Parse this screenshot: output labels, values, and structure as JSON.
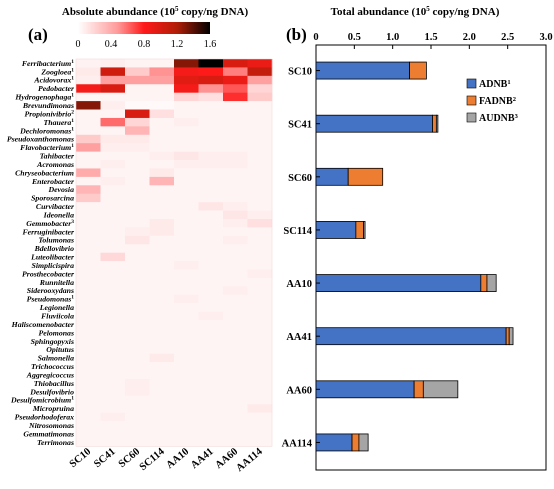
{
  "panel_a": {
    "label": "(a)",
    "colorbar_title": "Absolute abundance (10",
    "colorbar_title_sup": "5",
    "colorbar_title_tail": " copy/ng DNA)",
    "colorbar_ticks": [
      "0",
      "0.4",
      "0.8",
      "1.2",
      "1.6"
    ],
    "colors": {
      "low": "#ffffff",
      "mid1": "#ff9a9a",
      "mid2": "#ff1a1a",
      "mid3": "#b01e08",
      "high": "#000000"
    }
  },
  "panel_b": {
    "label": "(b)",
    "title_pre": "Total abundance (10",
    "title_sup": "5",
    "title_post": " copy/ng DNA)",
    "colors": {
      "ADNB": "#4472c4",
      "FADNB": "#ed7d31",
      "AUDNB": "#a5a5a5"
    }
  },
  "chart_data": [
    {
      "type": "heatmap",
      "title": "Absolute abundance (10^5 copy/ng DNA)",
      "x_categories": [
        "SC10",
        "SC41",
        "SC60",
        "SC114",
        "AA10",
        "AA41",
        "AA60",
        "AA114"
      ],
      "y_categories": [
        {
          "name": "Ferribacterium",
          "sup": "1"
        },
        {
          "name": "Zoogloea",
          "sup": "1"
        },
        {
          "name": "Acidovorax",
          "sup": "1"
        },
        {
          "name": "Pedobacter",
          "sup": ""
        },
        {
          "name": "Hydrogenophaga",
          "sup": "1"
        },
        {
          "name": "Brevundimonas",
          "sup": ""
        },
        {
          "name": "Propionivibrio",
          "sup": "2"
        },
        {
          "name": "Thauera",
          "sup": "1"
        },
        {
          "name": "Dechloromonas",
          "sup": "1"
        },
        {
          "name": "Pseudoxanthomonas",
          "sup": ""
        },
        {
          "name": "Flavobacterium",
          "sup": "1"
        },
        {
          "name": "Tahibacter",
          "sup": ""
        },
        {
          "name": "Acromonas",
          "sup": ""
        },
        {
          "name": "Chryseobacterium",
          "sup": ""
        },
        {
          "name": "Enterobacter",
          "sup": ""
        },
        {
          "name": "Devosia",
          "sup": ""
        },
        {
          "name": "Sporosarcina",
          "sup": ""
        },
        {
          "name": "Curvibacter",
          "sup": ""
        },
        {
          "name": "Ideonella",
          "sup": ""
        },
        {
          "name": "Gemmobacter",
          "sup": "3"
        },
        {
          "name": "Ferruginibacter",
          "sup": ""
        },
        {
          "name": "Tolumonas",
          "sup": ""
        },
        {
          "name": "Bdellovibrio",
          "sup": ""
        },
        {
          "name": "Luteolibacter",
          "sup": ""
        },
        {
          "name": "Simplicispira",
          "sup": ""
        },
        {
          "name": "Prosthecobacter",
          "sup": ""
        },
        {
          "name": "Runnitella",
          "sup": ""
        },
        {
          "name": "Siderooxydans",
          "sup": ""
        },
        {
          "name": "Pseudomonas",
          "sup": "1"
        },
        {
          "name": "Legionella",
          "sup": ""
        },
        {
          "name": "Fluviicola",
          "sup": ""
        },
        {
          "name": "Haliscomenobacter",
          "sup": ""
        },
        {
          "name": "Pelomonas",
          "sup": ""
        },
        {
          "name": "Sphingopyxis",
          "sup": ""
        },
        {
          "name": "Opitutus",
          "sup": ""
        },
        {
          "name": "Salmonella",
          "sup": ""
        },
        {
          "name": "Trichococcus",
          "sup": ""
        },
        {
          "name": "Aggregicoccus",
          "sup": ""
        },
        {
          "name": "Thiobacillus",
          "sup": ""
        },
        {
          "name": "Desulfovibrio",
          "sup": ""
        },
        {
          "name": "Desulfomicrobium",
          "sup": "1"
        },
        {
          "name": "Micropruina",
          "sup": ""
        },
        {
          "name": "Pseudorhodoferax",
          "sup": ""
        },
        {
          "name": "Nitrosomonas",
          "sup": ""
        },
        {
          "name": "Gemmatimonas",
          "sup": ""
        },
        {
          "name": "Terrimonas",
          "sup": ""
        }
      ],
      "values": [
        [
          0.06,
          0.08,
          0.05,
          0.05,
          1.3,
          1.6,
          1.0,
          0.9
        ],
        [
          0.1,
          1.05,
          0.25,
          0.5,
          0.85,
          0.8,
          0.55,
          1.1
        ],
        [
          0.08,
          0.45,
          0.45,
          0.45,
          0.95,
          1.0,
          0.9,
          0.45
        ],
        [
          0.85,
          1.0,
          0.05,
          0.05,
          0.85,
          0.5,
          0.65,
          0.2
        ],
        [
          0.05,
          0.05,
          0.05,
          0.05,
          0.2,
          0.15,
          0.75,
          0.25
        ],
        [
          1.3,
          0.08,
          0.03,
          0.03,
          0.05,
          0.05,
          0.05,
          0.05
        ],
        [
          0.05,
          0.05,
          1.0,
          0.15,
          0.05,
          0.05,
          0.05,
          0.05
        ],
        [
          0.05,
          0.6,
          0.2,
          0.05,
          0.08,
          0.05,
          0.05,
          0.05
        ],
        [
          0.05,
          0.05,
          0.35,
          0.05,
          0.05,
          0.05,
          0.05,
          0.05
        ],
        [
          0.25,
          0.1,
          0.1,
          0.05,
          0.05,
          0.05,
          0.05,
          0.05
        ],
        [
          0.45,
          0.08,
          0.08,
          0.05,
          0.05,
          0.05,
          0.05,
          0.05
        ],
        [
          0.05,
          0.05,
          0.05,
          0.08,
          0.12,
          0.08,
          0.08,
          0.05
        ],
        [
          0.05,
          0.08,
          0.05,
          0.05,
          0.08,
          0.08,
          0.08,
          0.05
        ],
        [
          0.4,
          0.05,
          0.05,
          0.1,
          0.05,
          0.05,
          0.05,
          0.05
        ],
        [
          0.05,
          0.08,
          0.05,
          0.35,
          0.05,
          0.05,
          0.05,
          0.05
        ],
        [
          0.35,
          0.05,
          0.05,
          0.05,
          0.05,
          0.05,
          0.05,
          0.05
        ],
        [
          0.25,
          0.05,
          0.05,
          0.05,
          0.05,
          0.05,
          0.05,
          0.05
        ],
        [
          0.05,
          0.05,
          0.05,
          0.05,
          0.05,
          0.12,
          0.08,
          0.05
        ],
        [
          0.05,
          0.05,
          0.05,
          0.05,
          0.05,
          0.05,
          0.12,
          0.08
        ],
        [
          0.05,
          0.05,
          0.05,
          0.1,
          0.05,
          0.05,
          0.08,
          0.15
        ],
        [
          0.05,
          0.05,
          0.08,
          0.1,
          0.05,
          0.05,
          0.05,
          0.05
        ],
        [
          0.05,
          0.05,
          0.12,
          0.05,
          0.05,
          0.05,
          0.08,
          0.05
        ],
        [
          0.05,
          0.05,
          0.05,
          0.05,
          0.05,
          0.05,
          0.05,
          0.05
        ],
        [
          0.05,
          0.18,
          0.05,
          0.05,
          0.05,
          0.05,
          0.05,
          0.05
        ],
        [
          0.05,
          0.05,
          0.05,
          0.05,
          0.08,
          0.05,
          0.05,
          0.05
        ],
        [
          0.05,
          0.05,
          0.05,
          0.05,
          0.05,
          0.05,
          0.05,
          0.08
        ],
        [
          0.05,
          0.05,
          0.05,
          0.05,
          0.05,
          0.05,
          0.05,
          0.05
        ],
        [
          0.05,
          0.05,
          0.05,
          0.05,
          0.05,
          0.05,
          0.08,
          0.05
        ],
        [
          0.05,
          0.05,
          0.05,
          0.05,
          0.08,
          0.05,
          0.05,
          0.05
        ],
        [
          0.05,
          0.05,
          0.05,
          0.05,
          0.05,
          0.05,
          0.05,
          0.05
        ],
        [
          0.05,
          0.05,
          0.05,
          0.05,
          0.05,
          0.08,
          0.05,
          0.05
        ],
        [
          0.05,
          0.05,
          0.05,
          0.05,
          0.05,
          0.05,
          0.05,
          0.05
        ],
        [
          0.05,
          0.05,
          0.05,
          0.05,
          0.05,
          0.05,
          0.05,
          0.05
        ],
        [
          0.05,
          0.05,
          0.05,
          0.05,
          0.05,
          0.05,
          0.05,
          0.05
        ],
        [
          0.05,
          0.05,
          0.05,
          0.05,
          0.05,
          0.05,
          0.05,
          0.05
        ],
        [
          0.05,
          0.05,
          0.05,
          0.1,
          0.05,
          0.05,
          0.05,
          0.05
        ],
        [
          0.05,
          0.05,
          0.05,
          0.05,
          0.05,
          0.05,
          0.05,
          0.05
        ],
        [
          0.05,
          0.05,
          0.05,
          0.05,
          0.05,
          0.05,
          0.05,
          0.05
        ],
        [
          0.05,
          0.05,
          0.08,
          0.05,
          0.05,
          0.05,
          0.05,
          0.05
        ],
        [
          0.05,
          0.05,
          0.08,
          0.05,
          0.05,
          0.05,
          0.05,
          0.05
        ],
        [
          0.05,
          0.05,
          0.05,
          0.05,
          0.05,
          0.05,
          0.05,
          0.05
        ],
        [
          0.05,
          0.05,
          0.05,
          0.05,
          0.05,
          0.05,
          0.05,
          0.1
        ],
        [
          0.05,
          0.08,
          0.05,
          0.05,
          0.05,
          0.05,
          0.05,
          0.05
        ],
        [
          0.05,
          0.05,
          0.05,
          0.05,
          0.05,
          0.05,
          0.05,
          0.05
        ],
        [
          0.05,
          0.05,
          0.05,
          0.05,
          0.05,
          0.05,
          0.05,
          0.05
        ],
        [
          0.05,
          0.05,
          0.05,
          0.05,
          0.05,
          0.05,
          0.05,
          0.05
        ]
      ],
      "value_range": [
        0,
        1.6
      ]
    },
    {
      "type": "bar",
      "orientation": "horizontal",
      "stacked": true,
      "title": "Total abundance (10^5 copy/ng DNA)",
      "categories": [
        "SC10",
        "SC41",
        "SC60",
        "SC114",
        "AA10",
        "AA41",
        "AA60",
        "AA114"
      ],
      "series": [
        {
          "name": "ADNB",
          "sup": "1",
          "values": [
            1.22,
            1.52,
            0.42,
            0.52,
            2.15,
            2.48,
            1.28,
            0.47
          ]
        },
        {
          "name": "FADNB",
          "sup": "2",
          "values": [
            0.22,
            0.05,
            0.45,
            0.1,
            0.08,
            0.04,
            0.12,
            0.09
          ]
        },
        {
          "name": "AUDNB",
          "sup": "3",
          "values": [
            0.0,
            0.02,
            0.0,
            0.02,
            0.12,
            0.05,
            0.45,
            0.12
          ]
        }
      ],
      "xlim": [
        0,
        3.0
      ],
      "xticks": [
        "0",
        "0.5",
        "1.0",
        "1.5",
        "2.0",
        "2.5",
        "3.0"
      ],
      "legend": "top-right"
    }
  ]
}
